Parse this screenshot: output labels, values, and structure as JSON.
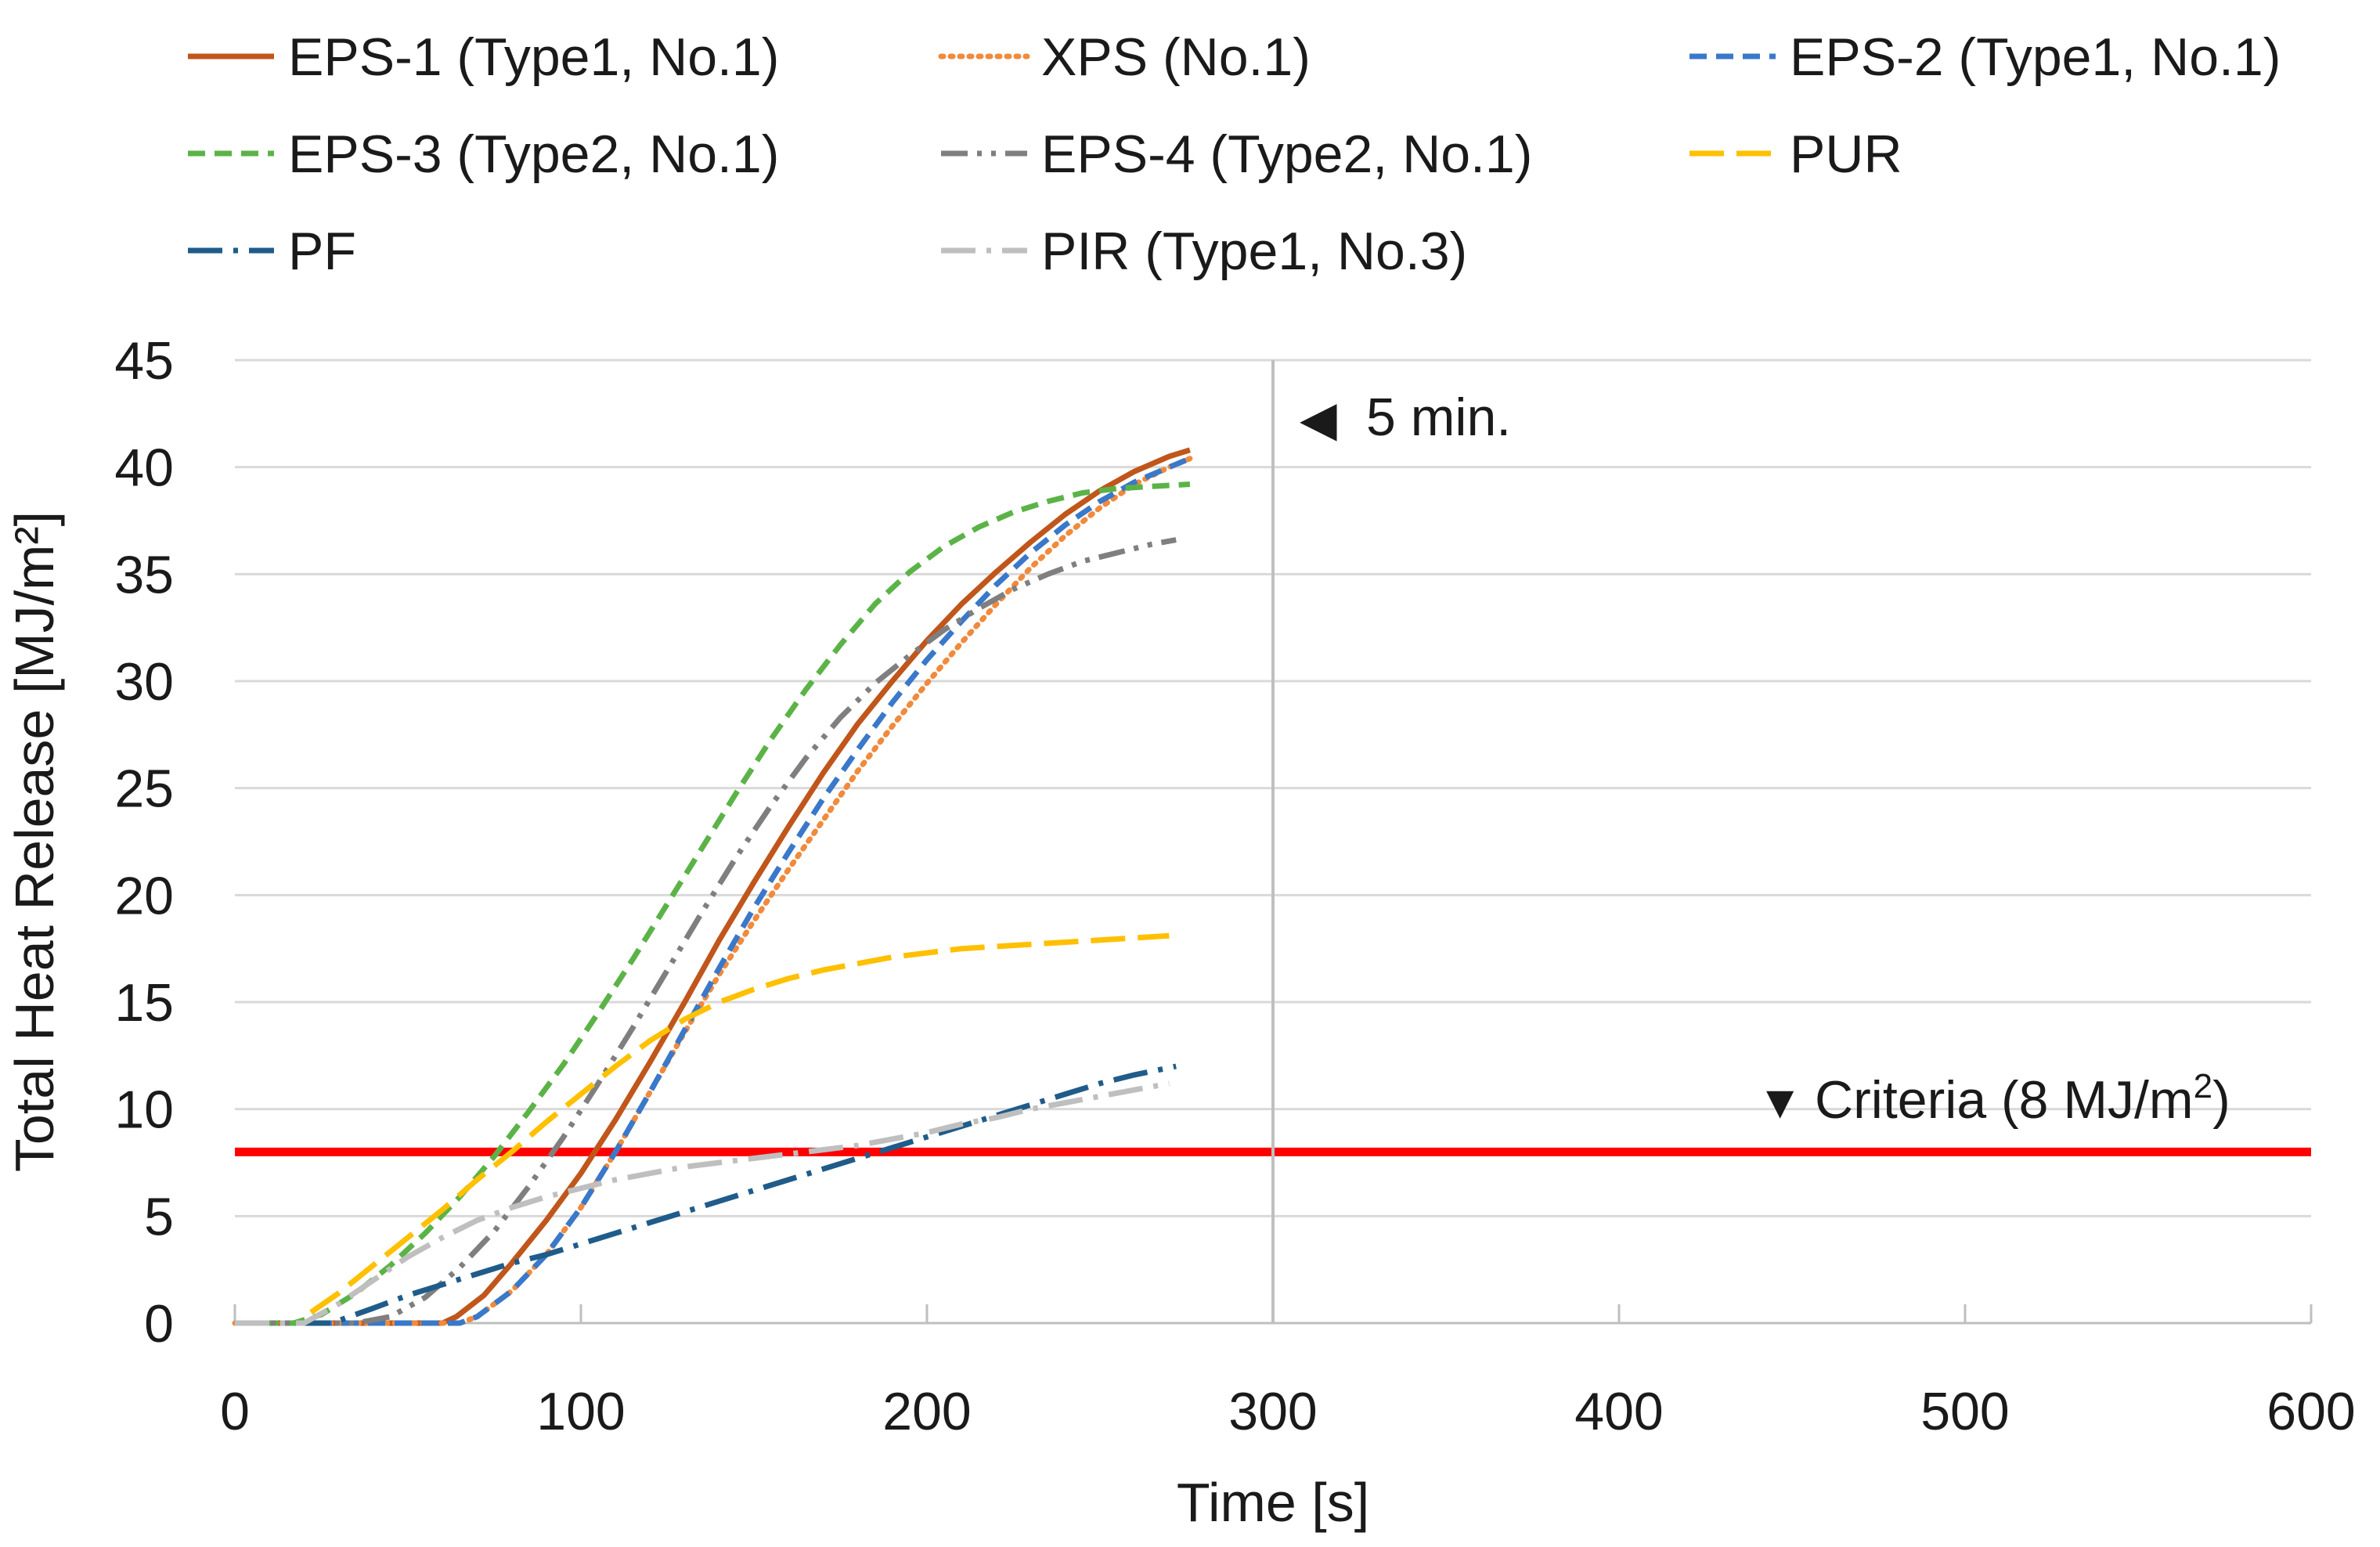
{
  "chart_data": {
    "type": "line",
    "title": "",
    "xlabel": "Time [s]",
    "ylabel": "Total Heat Release [MJ/m²]",
    "xlim": [
      0,
      600
    ],
    "ylim": [
      0,
      45
    ],
    "xticks": [
      0,
      100,
      200,
      300,
      400,
      500,
      600
    ],
    "yticks": [
      0,
      5,
      10,
      15,
      20,
      25,
      30,
      35,
      40,
      45
    ],
    "grid": "horizontal",
    "legend_position": "top",
    "series": [
      {
        "name": "EPS-1 (Type1, No.1)",
        "color": "#C0561B",
        "dash": "solid",
        "x": [
          0,
          60,
          64,
          72,
          80,
          90,
          100,
          110,
          120,
          130,
          140,
          150,
          160,
          170,
          180,
          190,
          200,
          210,
          220,
          230,
          240,
          250,
          260,
          270,
          276
        ],
        "y": [
          0,
          0,
          0.3,
          1.3,
          2.8,
          4.8,
          7.0,
          9.5,
          12.2,
          15.0,
          17.9,
          20.6,
          23.2,
          25.7,
          28.0,
          30.0,
          31.9,
          33.6,
          35.1,
          36.5,
          37.8,
          38.9,
          39.8,
          40.5,
          40.8
        ]
      },
      {
        "name": "XPS (No.1)",
        "color": "#F08A3C",
        "dash": "dotted",
        "x": [
          0,
          65,
          70,
          80,
          90,
          100,
          110,
          120,
          130,
          140,
          150,
          160,
          170,
          180,
          190,
          200,
          210,
          220,
          230,
          240,
          250,
          260,
          270,
          276
        ],
        "y": [
          0,
          0,
          0.3,
          1.5,
          3.2,
          5.4,
          8.0,
          10.8,
          13.6,
          16.3,
          18.8,
          21.2,
          23.5,
          25.8,
          27.9,
          29.9,
          31.8,
          33.6,
          35.3,
          36.8,
          38.1,
          39.2,
          40.0,
          40.4
        ]
      },
      {
        "name": "EPS-2 (Type1, No.1)",
        "color": "#3A78C9",
        "dash": "dashed",
        "x": [
          0,
          65,
          70,
          80,
          90,
          100,
          110,
          120,
          130,
          140,
          150,
          160,
          170,
          180,
          190,
          200,
          210,
          220,
          230,
          240,
          250,
          260,
          270,
          276
        ],
        "y": [
          0,
          0,
          0.3,
          1.5,
          3.2,
          5.4,
          8.0,
          10.8,
          13.7,
          16.6,
          19.4,
          22.0,
          24.5,
          26.8,
          29.0,
          31.0,
          32.8,
          34.5,
          36.0,
          37.3,
          38.4,
          39.3,
          40.0,
          40.4
        ]
      },
      {
        "name": "EPS-3 (Type2, No.1)",
        "color": "#5BB347",
        "dash": "dashed",
        "x": [
          0,
          17,
          25,
          35,
          45,
          55,
          65,
          75,
          85,
          95,
          105,
          115,
          125,
          135,
          145,
          155,
          165,
          175,
          185,
          195,
          205,
          215,
          225,
          235,
          245,
          255,
          265,
          276
        ],
        "y": [
          0,
          0,
          0.4,
          1.4,
          2.7,
          4.2,
          5.9,
          7.8,
          9.9,
          12.1,
          14.5,
          17.0,
          19.6,
          22.2,
          24.8,
          27.3,
          29.6,
          31.7,
          33.6,
          35.1,
          36.3,
          37.2,
          37.9,
          38.4,
          38.8,
          39.0,
          39.1,
          39.2
        ]
      },
      {
        "name": "EPS-4 (Type2, No.1)",
        "color": "#7F7F7F",
        "dash": "dashdotdot",
        "x": [
          0,
          35,
          45,
          55,
          65,
          75,
          85,
          95,
          105,
          115,
          125,
          135,
          145,
          155,
          165,
          175,
          185,
          195,
          205,
          215,
          225,
          235,
          245,
          255,
          265,
          272
        ],
        "y": [
          0,
          0,
          0.3,
          1.2,
          2.6,
          4.3,
          6.4,
          8.7,
          11.2,
          13.8,
          16.5,
          19.2,
          21.8,
          24.2,
          26.4,
          28.3,
          29.9,
          31.2,
          32.4,
          33.4,
          34.3,
          35.0,
          35.6,
          36.0,
          36.4,
          36.6
        ]
      },
      {
        "name": "PUR",
        "color": "#FFC000",
        "dash": "longdash",
        "x": [
          22,
          30,
          40,
          50,
          60,
          70,
          80,
          90,
          100,
          110,
          120,
          130,
          140,
          150,
          160,
          170,
          180,
          190,
          200,
          210,
          220,
          230,
          240,
          250,
          260,
          270
        ],
        "y": [
          0.5,
          1.4,
          2.7,
          4.0,
          5.3,
          6.7,
          8.0,
          9.4,
          10.7,
          12.0,
          13.2,
          14.2,
          15.0,
          15.6,
          16.1,
          16.5,
          16.8,
          17.1,
          17.3,
          17.5,
          17.6,
          17.7,
          17.8,
          17.9,
          18.0,
          18.1
        ]
      },
      {
        "name": "PF",
        "color": "#1F5C8A",
        "dash": "dashdot",
        "x": [
          0,
          28,
          40,
          50,
          60,
          70,
          80,
          90,
          100,
          110,
          120,
          130,
          140,
          150,
          160,
          170,
          180,
          190,
          200,
          210,
          220,
          230,
          240,
          250,
          260,
          272
        ],
        "y": [
          0,
          0,
          0.7,
          1.3,
          1.8,
          2.3,
          2.8,
          3.2,
          3.7,
          4.2,
          4.7,
          5.2,
          5.7,
          6.2,
          6.7,
          7.2,
          7.7,
          8.2,
          8.7,
          9.2,
          9.7,
          10.2,
          10.7,
          11.2,
          11.6,
          12.0
        ]
      },
      {
        "name": "PIR (Type1, No.3)",
        "color": "#BFBFBF",
        "dash": "dashdot",
        "x": [
          0,
          20,
          30,
          40,
          50,
          60,
          70,
          80,
          90,
          100,
          110,
          120,
          130,
          140,
          150,
          160,
          170,
          180,
          190,
          200,
          210,
          220,
          230,
          240,
          250,
          260,
          270
        ],
        "y": [
          0,
          0,
          0.9,
          2.0,
          3.1,
          4.0,
          4.8,
          5.4,
          5.9,
          6.3,
          6.7,
          7.0,
          7.3,
          7.5,
          7.7,
          7.9,
          8.1,
          8.3,
          8.6,
          8.9,
          9.3,
          9.6,
          10.0,
          10.3,
          10.6,
          10.9,
          11.2
        ]
      }
    ],
    "reference_lines": [
      {
        "orientation": "horizontal",
        "value": 8,
        "color": "#FF0000"
      },
      {
        "orientation": "vertical",
        "value": 300,
        "color": "#BFBFBF"
      }
    ],
    "annotations": {
      "five_min": {
        "text": "5 min.",
        "marker": "◀"
      },
      "criteria": {
        "text_before": "Criteria (8 MJ/m",
        "superscript": "2",
        "text_after": ")",
        "marker": "▼"
      }
    }
  }
}
